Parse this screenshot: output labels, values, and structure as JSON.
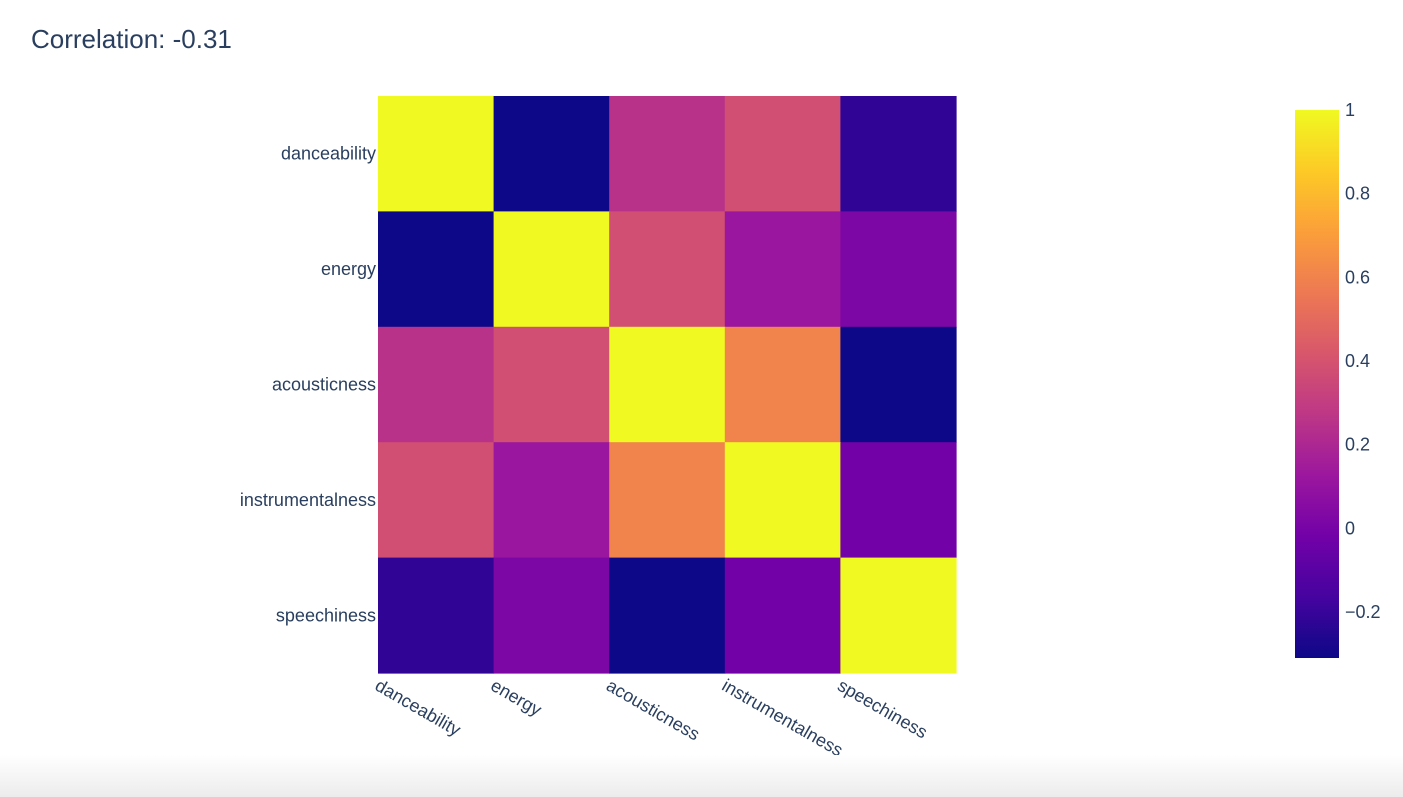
{
  "chart_data": {
    "type": "heatmap",
    "title": "Correlation: -0.31",
    "x_categories": [
      "danceability",
      "energy",
      "acousticness",
      "instrumentalness",
      "speechiness"
    ],
    "y_categories": [
      "danceability",
      "energy",
      "acousticness",
      "instrumentalness",
      "speechiness"
    ],
    "z": [
      [
        1.0,
        -0.31,
        0.25,
        0.38,
        -0.22
      ],
      [
        -0.31,
        1.0,
        0.38,
        0.12,
        0.02
      ],
      [
        0.25,
        0.38,
        1.0,
        0.6,
        -0.31
      ],
      [
        0.38,
        0.12,
        0.6,
        1.0,
        -0.02
      ],
      [
        -0.22,
        0.02,
        -0.31,
        -0.02,
        1.0
      ]
    ],
    "zlim": [
      -0.31,
      1.0
    ],
    "colorscale": [
      "#0d0887",
      "#46039f",
      "#7201a8",
      "#9c179e",
      "#bd3786",
      "#d8576b",
      "#ed7953",
      "#fb9f3a",
      "#fdca26",
      "#f0f921"
    ],
    "colorbar": {
      "ticks": [
        1,
        0.8,
        0.6,
        0.4,
        0.2,
        0,
        -0.2
      ],
      "tick_labels": [
        "1",
        "0.8",
        "0.6",
        "0.4",
        "0.2",
        "0",
        "−0.2"
      ]
    },
    "text_color": "#2a3f5f"
  }
}
